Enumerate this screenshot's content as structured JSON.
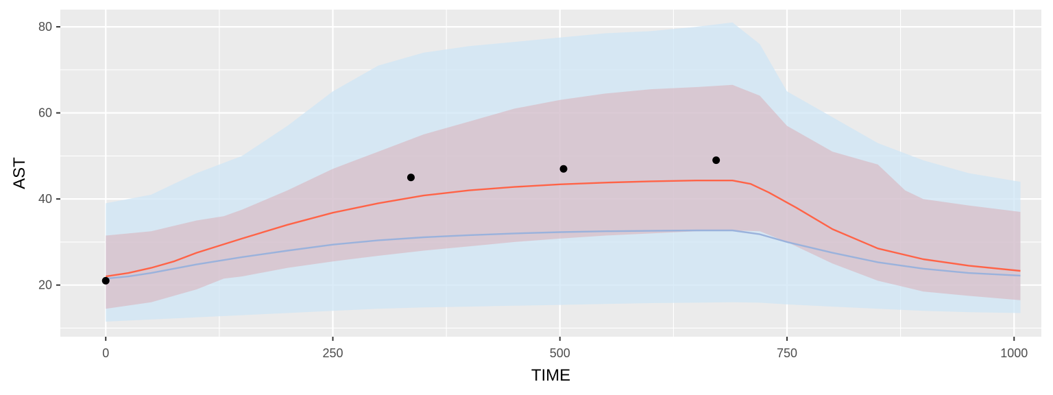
{
  "chart_data": {
    "type": "line",
    "title": "",
    "xlabel": "TIME",
    "ylabel": "AST",
    "xlim": [
      -50,
      1030
    ],
    "ylim": [
      8,
      84
    ],
    "x_ticks": [
      0,
      250,
      500,
      750,
      1000
    ],
    "x_tick_labels": [
      "0",
      "250",
      "500",
      "750",
      "1000"
    ],
    "y_ticks": [
      20,
      40,
      60,
      80
    ],
    "y_tick_labels": [
      "20",
      "40",
      "60",
      "80"
    ],
    "grid": true,
    "legend": "none",
    "colors": {
      "panel_bg": "#ebebeb",
      "grid": "#ffffff",
      "outer_band": "#cfe6f5",
      "inner_band": "#dba2ab",
      "red_line": "#ff6347",
      "blue_line": "#9ab2dc",
      "points": "#000000"
    },
    "outer_band": {
      "x": [
        0,
        50,
        100,
        150,
        200,
        250,
        300,
        350,
        400,
        450,
        500,
        550,
        600,
        650,
        690,
        720,
        750,
        800,
        850,
        900,
        950,
        1007
      ],
      "lower": [
        11.5,
        12,
        12.5,
        13,
        13.5,
        14,
        14.5,
        14.8,
        15,
        15.2,
        15.4,
        15.6,
        15.8,
        15.9,
        16,
        15.9,
        15.5,
        15,
        14.5,
        14,
        13.7,
        13.5
      ],
      "upper": [
        39,
        41,
        46,
        50,
        57,
        65,
        71,
        74,
        75.5,
        76.5,
        77.5,
        78.5,
        79,
        80,
        81,
        76,
        65,
        59,
        53,
        49,
        46,
        44
      ]
    },
    "inner_band": {
      "x": [
        0,
        50,
        100,
        130,
        150,
        200,
        250,
        300,
        350,
        400,
        450,
        500,
        550,
        600,
        650,
        690,
        720,
        750,
        800,
        850,
        880,
        900,
        950,
        1007
      ],
      "lower": [
        14.5,
        16,
        19,
        21.5,
        22,
        24,
        25.5,
        26.8,
        28,
        29,
        30,
        30.8,
        31.5,
        32,
        32.5,
        32.7,
        32.5,
        30,
        25,
        21,
        19.5,
        18.5,
        17.5,
        16.5
      ],
      "upper": [
        31.5,
        32.5,
        35,
        36,
        37.5,
        42,
        47,
        51,
        55,
        58,
        61,
        63,
        64.5,
        65.5,
        66,
        66.5,
        64,
        57,
        51,
        48,
        42,
        40,
        38.5,
        37
      ]
    },
    "series": [
      {
        "x": [
          0,
          25,
          50,
          75,
          100,
          150,
          200,
          250,
          300,
          350,
          400,
          450,
          500,
          550,
          600,
          650,
          690,
          710,
          730,
          760,
          800,
          850,
          900,
          950,
          1007
        ],
        "values": [
          22,
          22.8,
          24,
          25.5,
          27.5,
          30.8,
          34,
          36.8,
          39,
          40.8,
          42,
          42.8,
          43.4,
          43.8,
          44.1,
          44.3,
          44.3,
          43.5,
          41.5,
          38,
          33,
          28.5,
          26,
          24.5,
          23.3
        ]
      },
      {
        "x": [
          0,
          25,
          50,
          75,
          100,
          150,
          200,
          250,
          300,
          350,
          400,
          450,
          500,
          550,
          600,
          650,
          690,
          720,
          750,
          800,
          850,
          900,
          950,
          1007
        ],
        "values": [
          21.5,
          22,
          22.8,
          23.8,
          24.8,
          26.5,
          28,
          29.4,
          30.4,
          31.1,
          31.6,
          32,
          32.3,
          32.5,
          32.6,
          32.7,
          32.7,
          31.8,
          30,
          27.5,
          25.3,
          23.8,
          22.8,
          22.2
        ]
      }
    ],
    "points": {
      "x": [
        0,
        336,
        504,
        672
      ],
      "y": [
        21,
        45,
        47,
        49
      ]
    }
  }
}
